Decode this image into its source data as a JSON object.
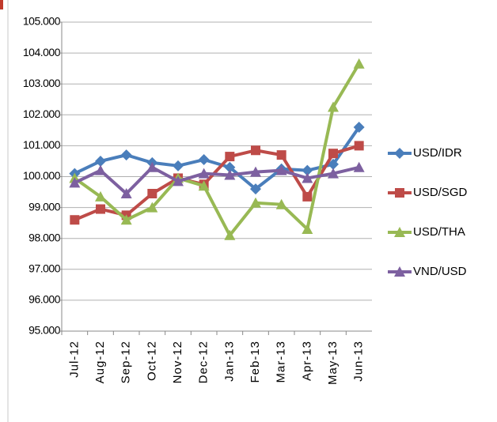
{
  "chart_data": {
    "type": "line",
    "categories": [
      "Jul-12",
      "Aug-12",
      "Sep-12",
      "Oct-12",
      "Nov-12",
      "Dec-12",
      "Jan-13",
      "Feb-13",
      "Mar-13",
      "Apr-13",
      "May-13",
      "Jun-13"
    ],
    "series": [
      {
        "name": "USD/IDR",
        "color": "#4a7ebb",
        "marker": "diamond",
        "values": [
          100.1,
          100.5,
          100.7,
          100.45,
          100.35,
          100.55,
          100.3,
          99.6,
          100.25,
          100.2,
          100.4,
          101.6
        ]
      },
      {
        "name": "USD/SGD",
        "color": "#be4b48",
        "marker": "square",
        "values": [
          98.6,
          98.95,
          98.75,
          99.45,
          99.95,
          99.75,
          100.65,
          100.85,
          100.7,
          99.35,
          100.75,
          101.0
        ]
      },
      {
        "name": "USD/THA",
        "color": "#98b954",
        "marker": "triangle",
        "values": [
          99.95,
          99.35,
          98.6,
          99.0,
          99.95,
          99.7,
          98.1,
          99.15,
          99.1,
          98.3,
          102.25,
          103.65
        ]
      },
      {
        "name": "VND/USD",
        "color": "#7d60a0",
        "marker": "triangle",
        "values": [
          99.8,
          100.2,
          99.45,
          100.3,
          99.85,
          100.1,
          100.05,
          100.15,
          100.2,
          99.95,
          100.1,
          100.3
        ]
      }
    ],
    "ylim": [
      95,
      105
    ],
    "yticks": [
      {
        "value": 95,
        "label": "95.000"
      },
      {
        "value": 96,
        "label": "96.000"
      },
      {
        "value": 97,
        "label": "97.000"
      },
      {
        "value": 98,
        "label": "98.000"
      },
      {
        "value": 99,
        "label": "99.000"
      },
      {
        "value": 100,
        "label": "100.000"
      },
      {
        "value": 101,
        "label": "101.000"
      },
      {
        "value": 102,
        "label": "102.000"
      },
      {
        "value": 103,
        "label": "103.000"
      },
      {
        "value": 104,
        "label": "104.000"
      },
      {
        "value": 105,
        "label": "105.000"
      }
    ],
    "grid": true,
    "legend": "right"
  }
}
